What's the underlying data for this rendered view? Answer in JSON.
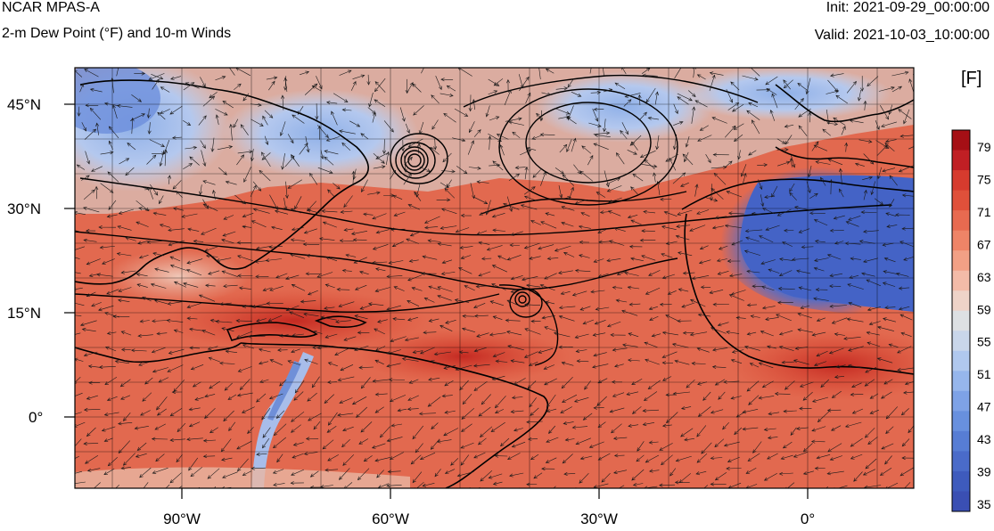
{
  "header": {
    "title_left": "NCAR MPAS-A",
    "subtitle_left": "2-m Dew Point (°F) and 10-m Winds",
    "title_right": "Init: 2021-09-29_00:00:00",
    "subtitle_right": "Valid: 2021-10-03_10:00:00"
  },
  "map": {
    "lat_labels": [
      "45°N",
      "30°N",
      "15°N",
      "0°"
    ],
    "lon_labels": [
      "90°W",
      "60°W",
      "30°W",
      "0°"
    ],
    "field": "2-m dew point",
    "overlay": "10-m wind vectors and sea-level pressure contours"
  },
  "colorbar": {
    "unit": "[F]",
    "labels": [
      "79",
      "75",
      "71",
      "67",
      "63",
      "59",
      "55",
      "51",
      "47",
      "43",
      "39",
      "35"
    ],
    "colors": [
      "#a50f15",
      "#c01f24",
      "#d63b2e",
      "#e0503a",
      "#e86a50",
      "#ef8467",
      "#f2a085",
      "#f3bba8",
      "#eed3c8",
      "#dde0e3",
      "#c9d6ea",
      "#b0c8ee",
      "#96b6ec",
      "#7ea2e6",
      "#6890de",
      "#577dd4",
      "#4a6bc9",
      "#3e5bbd",
      "#3a4fb3"
    ]
  }
}
